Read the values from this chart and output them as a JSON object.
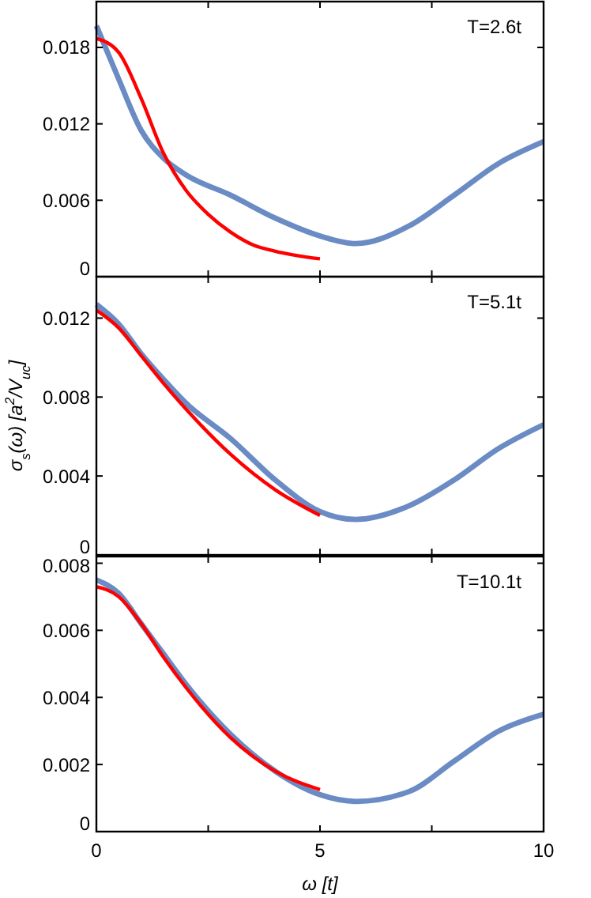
{
  "chart_data": [
    {
      "type": "line",
      "annotations": [
        "T=2.6t"
      ],
      "x": [
        0,
        0.5,
        1,
        1.5,
        2,
        3,
        4,
        5,
        5.8,
        7,
        8,
        9,
        10
      ],
      "xlim": [
        0,
        10
      ],
      "xticks": [
        {
          "value": 0,
          "label": null
        },
        {
          "value": 2.5,
          "label": null
        },
        {
          "value": 5,
          "label": null
        },
        {
          "value": 7.5,
          "label": null
        },
        {
          "value": 10,
          "label": null
        }
      ],
      "ylim": [
        0,
        0.0216
      ],
      "yticks": [
        0,
        0.006,
        0.012,
        0.018
      ],
      "tick_labels": "y",
      "grid": false,
      "series": [
        {
          "color": "#6a8bc4",
          "values": [
            0.0197,
            0.0155,
            0.0115,
            0.0093,
            0.008,
            0.0064,
            0.0046,
            0.0032,
            0.0026,
            0.004,
            0.0064,
            0.0089,
            0.0106
          ]
        },
        {
          "color": "#ff0000",
          "x": [
            0,
            0.5,
            1,
            1.5,
            2,
            2.5,
            3,
            3.5,
            4,
            5
          ],
          "values": [
            0.0187,
            0.0176,
            0.014,
            0.0097,
            0.0068,
            0.0049,
            0.0035,
            0.0025,
            0.002,
            0.0014
          ]
        }
      ]
    },
    {
      "type": "line",
      "annotations": [
        "T=5.1t"
      ],
      "ylabel": "σ$_{s}$(ω) [a$^{2}$/V$_{uc}$]",
      "x": [
        0,
        0.5,
        1,
        1.5,
        2,
        3,
        4,
        5,
        5.8,
        7,
        8,
        9,
        10
      ],
      "xlim": [
        0,
        10
      ],
      "xticks": [
        {
          "value": 0,
          "label": null
        },
        {
          "value": 2.5,
          "label": null
        },
        {
          "value": 5,
          "label": null
        },
        {
          "value": 7.5,
          "label": null
        },
        {
          "value": 10,
          "label": null
        }
      ],
      "ylim": [
        0,
        0.0141
      ],
      "yticks": [
        0,
        0.004,
        0.008,
        0.012
      ],
      "tick_labels": "y",
      "grid": false,
      "series": [
        {
          "color": "#6a8bc4",
          "values": [
            0.0127,
            0.0117,
            0.0102,
            0.0089,
            0.0077,
            0.0059,
            0.0038,
            0.0022,
            0.0018,
            0.0025,
            0.0038,
            0.0054,
            0.0066
          ]
        },
        {
          "color": "#ff0000",
          "x": [
            0,
            0.5,
            1,
            1.5,
            2,
            3,
            4,
            5
          ],
          "values": [
            0.0124,
            0.0115,
            0.0101,
            0.0087,
            0.0074,
            0.0051,
            0.0033,
            0.002
          ]
        }
      ]
    },
    {
      "type": "line",
      "annotations": [
        "T=10.1t"
      ],
      "xlabel": "ω [t]",
      "x": [
        0,
        0.5,
        1,
        1.5,
        2,
        3,
        4,
        5,
        5.8,
        7,
        8,
        9,
        10
      ],
      "xlim": [
        0,
        10
      ],
      "xticks": [
        0,
        {
          "value": 2.5,
          "label": null
        },
        5,
        {
          "value": 7.5,
          "label": null
        },
        10
      ],
      "ylim": [
        0,
        0.0082
      ],
      "yticks": [
        0,
        0.002,
        0.004,
        0.006,
        0.008
      ],
      "grid": false,
      "series": [
        {
          "color": "#6a8bc4",
          "values": [
            0.0075,
            0.0071,
            0.0062,
            0.0053,
            0.0044,
            0.0029,
            0.0018,
            0.0011,
            0.0009,
            0.0012,
            0.0021,
            0.003,
            0.0035
          ]
        },
        {
          "color": "#ff0000",
          "x": [
            0,
            0.5,
            1,
            1.5,
            2,
            3,
            4,
            5
          ],
          "values": [
            0.0073,
            0.007,
            0.0062,
            0.0052,
            0.0043,
            0.0028,
            0.0018,
            0.00125
          ]
        }
      ]
    }
  ]
}
